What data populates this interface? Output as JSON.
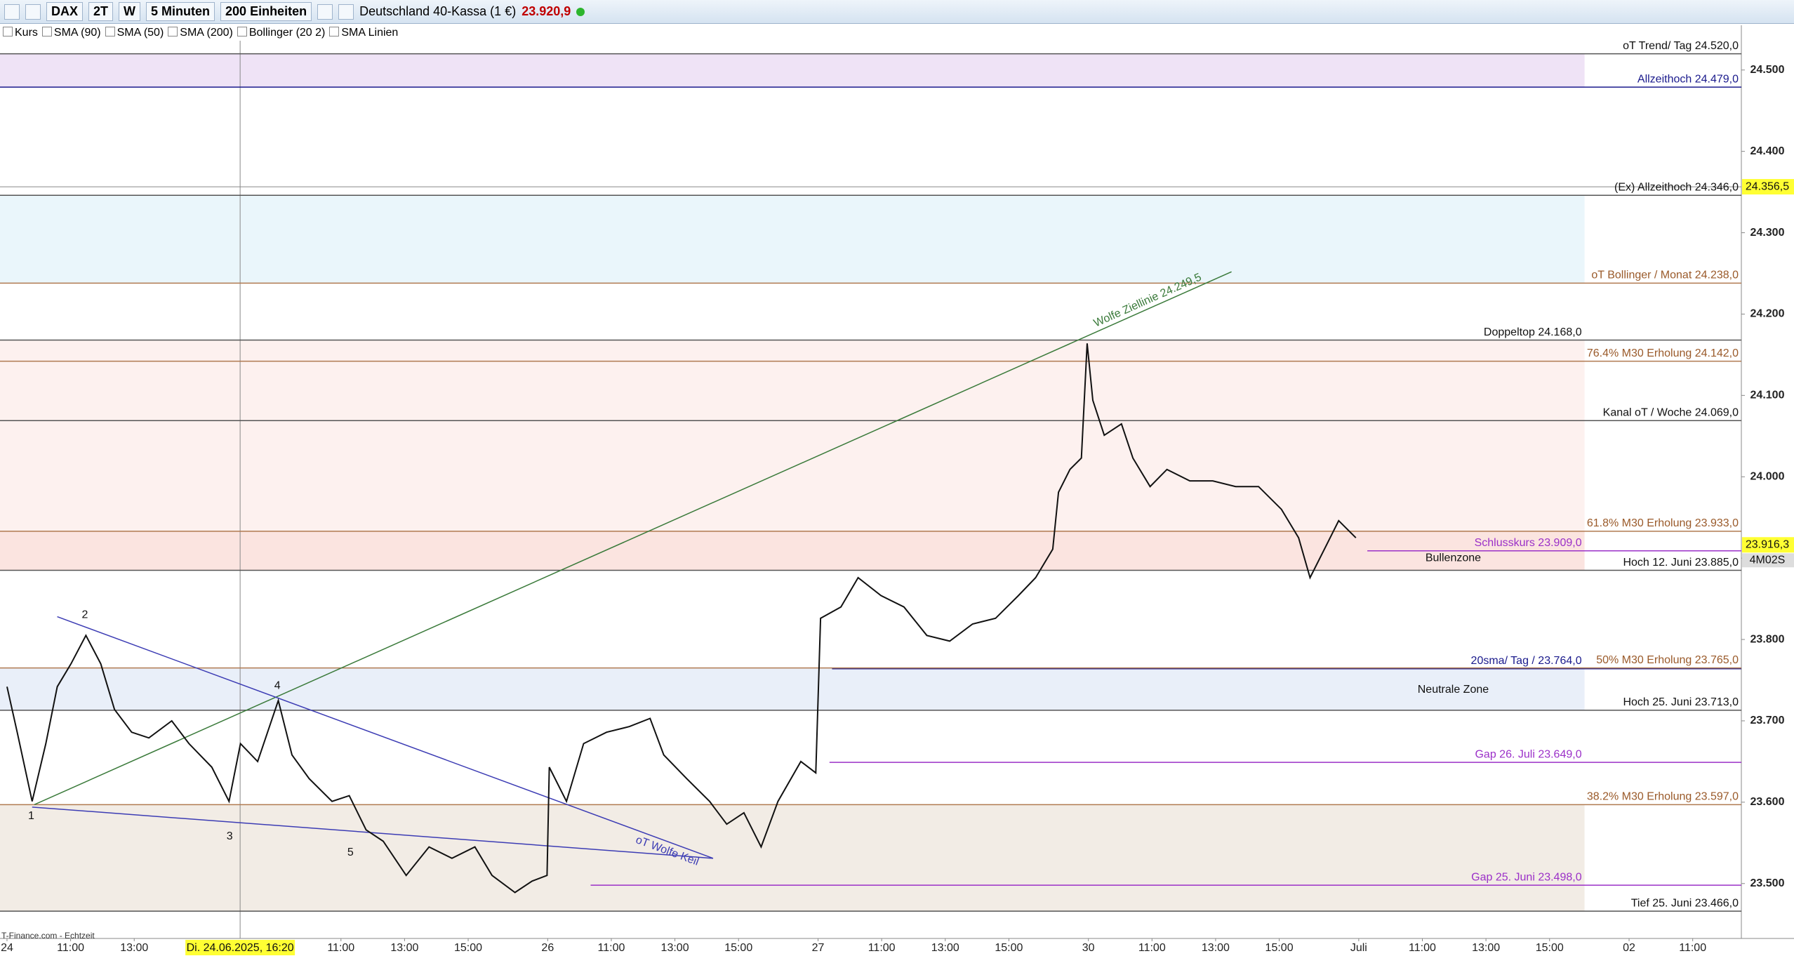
{
  "toolbar": {
    "symbol": "DAX",
    "range_2t": "2T",
    "range_w": "W",
    "interval": "5 Minuten",
    "units": "200 Einheiten",
    "instrument": "Deutschland 40-Kassa (1 €)",
    "last": "23.920,9"
  },
  "indicators": [
    "Kurs",
    "SMA (90)",
    "SMA (50)",
    "SMA (200)",
    "Bollinger (20 2)",
    "SMA Linien"
  ],
  "source": "T-Finance.com - Echtzeit",
  "chart_data": {
    "type": "line",
    "x": [
      0,
      0.32,
      0.79,
      1.22,
      1.58,
      2.01,
      2.48,
      2.95,
      3.38,
      3.92,
      4.46,
      5.18,
      5.72,
      6.44,
      6.98,
      7.34,
      7.88,
      8.53,
      8.96,
      9.5,
      10.22,
      10.76,
      11.29,
      11.83,
      12.55,
      13.27,
      13.99,
      14.71,
      15.25,
      15.97,
      16.51,
      16.98,
      17.05,
      17.59,
      18.13,
      18.85,
      19.57,
      20.22,
      20.65,
      21.37,
      22.09,
      22.63,
      23.17,
      23.71,
      24.24,
      24.96,
      25.43,
      25.58,
      26.22,
      26.76,
      27.48,
      28.2,
      28.92,
      29.64,
      30.36,
      31.08,
      31.8,
      32.34,
      32.88,
      33.06,
      33.42,
      33.78,
      33.96,
      34.14,
      34.5,
      35.04,
      35.4,
      35.94,
      36.47,
      37.19,
      37.91,
      38.63,
      39.35,
      40.07,
      40.61,
      40.97,
      41.51,
      41.87,
      42.41
    ],
    "series": [
      {
        "color": "#111111",
        "values": [
          23742,
          23686,
          23601,
          23672,
          23742,
          23770,
          23805,
          23770,
          23714,
          23686,
          23679,
          23700,
          23672,
          23643,
          23601,
          23672,
          23650,
          23725,
          23658,
          23629,
          23601,
          23608,
          23566,
          23552,
          23510,
          23545,
          23531,
          23545,
          23510,
          23489,
          23503,
          23510,
          23643,
          23601,
          23672,
          23686,
          23693,
          23703,
          23658,
          23629,
          23601,
          23573,
          23587,
          23545,
          23601,
          23650,
          23636,
          23826,
          23840,
          23876,
          23854,
          23840,
          23805,
          23798,
          23819,
          23826,
          23854,
          23876,
          23911,
          23981,
          24009,
          24023,
          24164,
          24094,
          24051,
          24065,
          24023,
          23988,
          24009,
          23995,
          23995,
          23988,
          23988,
          23960,
          23925,
          23876,
          23918,
          23946,
          23925
        ]
      }
    ],
    "xlim": [
      -0.22,
      54.53
    ],
    "ylim": [
      23432.5,
      24555
    ],
    "xticks": [
      {
        "value": 0,
        "label": "24"
      },
      {
        "value": 2,
        "label": "11:00"
      },
      {
        "value": 4,
        "label": "13:00"
      },
      {
        "value": 10.5,
        "label": "11:00"
      },
      {
        "value": 12.5,
        "label": "13:00"
      },
      {
        "value": 14.5,
        "label": "15:00"
      },
      {
        "value": 17,
        "label": "26"
      },
      {
        "value": 19,
        "label": "11:00"
      },
      {
        "value": 21,
        "label": "13:00"
      },
      {
        "value": 23,
        "label": "15:00"
      },
      {
        "value": 25.5,
        "label": "27"
      },
      {
        "value": 27.5,
        "label": "11:00"
      },
      {
        "value": 29.5,
        "label": "13:00"
      },
      {
        "value": 31.5,
        "label": "15:00"
      },
      {
        "value": 34,
        "label": "30"
      },
      {
        "value": 36,
        "label": "11:00"
      },
      {
        "value": 38,
        "label": "13:00"
      },
      {
        "value": 40,
        "label": "15:00"
      },
      {
        "value": 42.5,
        "label": "Juli"
      },
      {
        "value": 44.5,
        "label": "11:00"
      },
      {
        "value": 46.5,
        "label": "13:00"
      },
      {
        "value": 48.5,
        "label": "15:00"
      },
      {
        "value": 51,
        "label": "02"
      },
      {
        "value": 53,
        "label": "11:00"
      }
    ],
    "yticks": [
      {
        "value": 23500,
        "label": "23.500"
      },
      {
        "value": 23600,
        "label": "23.600"
      },
      {
        "value": 23700,
        "label": "23.700"
      },
      {
        "value": 23800,
        "label": "23.800"
      },
      {
        "value": 23900,
        "label": "23.900"
      },
      {
        "value": 24000,
        "label": "24.000"
      },
      {
        "value": 24100,
        "label": "24.100"
      },
      {
        "value": 24200,
        "label": "24.200"
      },
      {
        "value": 24300,
        "label": "24.300"
      },
      {
        "value": 24400,
        "label": "24.400"
      },
      {
        "value": 24500,
        "label": "24.500"
      }
    ],
    "zones": [
      {
        "from": 24479,
        "to": 24520,
        "x_to": 49.6,
        "color": "#efe3f6"
      },
      {
        "from": 24238,
        "to": 24346,
        "x_to": 49.6,
        "color": "#eaf6fb"
      },
      {
        "from": 23933,
        "to": 24168,
        "x_to": 49.6,
        "color": "#fdf1ef"
      },
      {
        "from": 23885,
        "to": 23933,
        "x_to": 49.6,
        "color": "#fbe4e0"
      },
      {
        "from": 23713,
        "to": 23765,
        "x_to": 49.6,
        "color": "#e9eff9"
      },
      {
        "from": 23466,
        "to": 23597,
        "x_to": 49.6,
        "color": "#f2ece5"
      }
    ],
    "levels": [
      {
        "label": "oT Trend/ Tag 24.520,0",
        "value": 24520,
        "color": "#555555",
        "text_color": "#111111"
      },
      {
        "label": "Allzeithoch 24.479,0",
        "value": 24479,
        "color": "#1a1a8c",
        "text_color": "#1a1a8c"
      },
      {
        "label": "(Ex) Allzeithoch 24.346,0",
        "value": 24346,
        "color": "#555555",
        "text_color": "#111111"
      },
      {
        "label": "oT Bollinger / Monat 24.238,0",
        "value": 24238,
        "color": "#b07a50",
        "text_color": "#9a5a2a"
      },
      {
        "label": "Doppeltop 24.168,0",
        "value": 24168,
        "color": "#555555",
        "text_color": "#111111",
        "x_to": 49.6
      },
      {
        "label": "76.4%  M30 Erholung 24.142,0",
        "value": 24142,
        "color": "#b07a50",
        "text_color": "#9a5a2a"
      },
      {
        "label": "Kanal oT / Woche 24.069,0",
        "value": 24069,
        "color": "#555555",
        "text_color": "#111111"
      },
      {
        "label": "61.8%  M30 Erholung 23.933,0",
        "value": 23933,
        "color": "#b07a50",
        "text_color": "#9a5a2a"
      },
      {
        "label": "Schlusskurs 23.909,0",
        "value": 23909,
        "color": "#9b30c8",
        "text_color": "#9b30c8",
        "x_from": 42.77,
        "x_to": 49.6
      },
      {
        "label": "Hoch 12. Juni 23.885,0",
        "value": 23885,
        "color": "#555555",
        "text_color": "#111111"
      },
      {
        "label": "20sma/ Tag /   23.764,0",
        "value": 23764,
        "color": "#1a1a8c",
        "text_color": "#1a1a8c",
        "x_from": 25.94,
        "x_to": 49.6
      },
      {
        "label": "50%  M30 Erholung 23.765,0",
        "value": 23765,
        "color": "#b07a50",
        "text_color": "#9a5a2a"
      },
      {
        "label": "Hoch 25. Juni 23.713,0",
        "value": 23713,
        "color": "#555555",
        "text_color": "#111111"
      },
      {
        "label": "Gap 26. Juli  23.649,0",
        "value": 23649,
        "color": "#9b30c8",
        "text_color": "#9b30c8",
        "x_from": 25.86,
        "x_to": 49.6
      },
      {
        "label": "38.2%  M30 Erholung 23.597,0",
        "value": 23597,
        "color": "#b07a50",
        "text_color": "#9a5a2a"
      },
      {
        "label": "Gap  25. Juni 23.498,0",
        "value": 23498,
        "color": "#9b30c8",
        "text_color": "#9b30c8",
        "x_from": 18.35,
        "x_to": 49.6
      },
      {
        "label": "Tief 25. Juni  23.466,0",
        "value": 23466,
        "color": "#555555",
        "text_color": "#111111"
      }
    ],
    "trendlines": [
      {
        "label": "Wolfe Ziellinie   24.249,5",
        "x": [
          0.86,
          38.5
        ],
        "y": [
          23597,
          24252
        ],
        "color": "#3a7a3a"
      },
      {
        "label": "oT Wolfe Keil",
        "x": [
          1.58,
          22.2
        ],
        "y": [
          23828,
          23531
        ],
        "color": "#3c3cb4"
      },
      {
        "x": [
          0.79,
          22.2
        ],
        "y": [
          23594,
          23531
        ],
        "color": "#3c3cb4"
      }
    ],
    "annotations": [
      {
        "text": "1",
        "x": 0.76,
        "y": 23583
      },
      {
        "text": "2",
        "x": 2.45,
        "y": 23830
      },
      {
        "text": "3",
        "x": 7.0,
        "y": 23558
      },
      {
        "text": "4",
        "x": 8.5,
        "y": 23743
      },
      {
        "text": "5",
        "x": 10.8,
        "y": 23538
      },
      {
        "text": "Bullenzone",
        "x": 45.47,
        "y": 23900
      },
      {
        "text": "Neutrale Zone",
        "x": 45.47,
        "y": 23738
      }
    ],
    "crosshair": {
      "x": 7.33,
      "x_label": "Di. 24.06.2025, 16:20",
      "y": 24356.5,
      "y_label": "24.356,5"
    },
    "last_price": {
      "value": 23916.3,
      "label": "23.916,3",
      "countdown": "4M02S"
    }
  }
}
